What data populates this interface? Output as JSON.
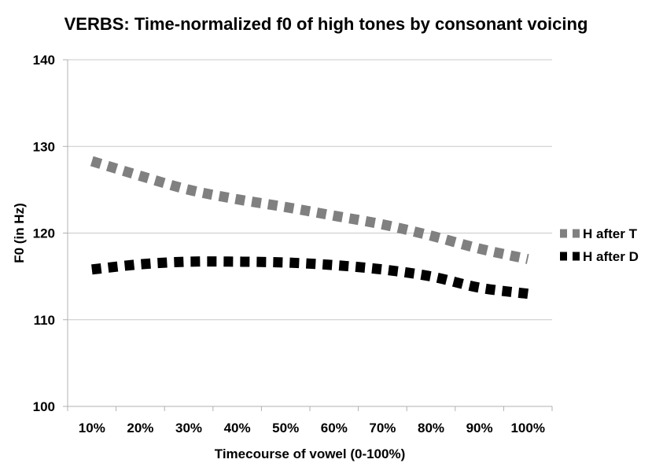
{
  "chart_data": {
    "type": "line",
    "title": "VERBS: Time-normalized f0 of high tones by consonant voicing",
    "xlabel": "Timecourse of vowel (0-100%)",
    "ylabel": "F0 (in Hz)",
    "categories": [
      "10%",
      "20%",
      "30%",
      "40%",
      "50%",
      "60%",
      "70%",
      "80%",
      "90%",
      "100%"
    ],
    "ylim": [
      100,
      140
    ],
    "yticks": [
      100,
      110,
      120,
      130,
      140
    ],
    "grid": true,
    "legend_position": "right",
    "series": [
      {
        "name": "H after T",
        "color": "#808080",
        "style": "dashed",
        "values": [
          128.3,
          126.6,
          125.0,
          123.9,
          123.0,
          122.0,
          121.0,
          119.7,
          118.2,
          117.0
        ]
      },
      {
        "name": "H after D",
        "color": "#000000",
        "style": "dashed",
        "values": [
          115.8,
          116.4,
          116.7,
          116.7,
          116.6,
          116.3,
          115.8,
          115.0,
          113.7,
          113.0
        ]
      }
    ]
  }
}
